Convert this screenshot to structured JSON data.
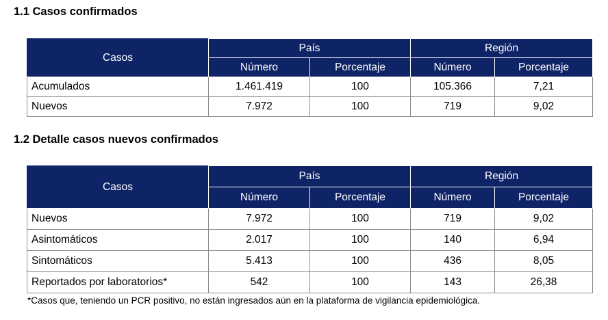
{
  "section1": {
    "title": "1.1 Casos confirmados",
    "headers": {
      "casos": "Casos",
      "pais": "País",
      "region": "Región",
      "numero": "Número",
      "porcentaje": "Porcentaje"
    },
    "rows": [
      {
        "label": "Acumulados",
        "pais_numero": "1.461.419",
        "pais_porcentaje": "100",
        "region_numero": "105.366",
        "region_porcentaje": "7,21"
      },
      {
        "label": "Nuevos",
        "pais_numero": "7.972",
        "pais_porcentaje": "100",
        "region_numero": "719",
        "region_porcentaje": "9,02"
      }
    ]
  },
  "section2": {
    "title": "1.2  Detalle casos nuevos confirmados",
    "headers": {
      "casos": "Casos",
      "pais": "País",
      "region": "Región",
      "numero": "Número",
      "porcentaje": "Porcentaje"
    },
    "rows": [
      {
        "label": "Nuevos",
        "pais_numero": "7.972",
        "pais_porcentaje": "100",
        "region_numero": "719",
        "region_porcentaje": "9,02"
      },
      {
        "label": "Asintomáticos",
        "pais_numero": "2.017",
        "pais_porcentaje": "100",
        "region_numero": "140",
        "region_porcentaje": "6,94"
      },
      {
        "label": "Sintomáticos",
        "pais_numero": "5.413",
        "pais_porcentaje": "100",
        "region_numero": "436",
        "region_porcentaje": "8,05"
      },
      {
        "label": "Reportados por laboratorios*",
        "pais_numero": "542",
        "pais_porcentaje": "100",
        "region_numero": "143",
        "region_porcentaje": "26,38"
      }
    ],
    "footnote": "*Casos que, teniendo un PCR positivo, no están ingresados aún en la plataforma de vigilancia epidemiológica."
  },
  "colors": {
    "header_bg": "#0f2467",
    "header_text": "#ffffff",
    "cell_border": "#8a8a8a"
  }
}
